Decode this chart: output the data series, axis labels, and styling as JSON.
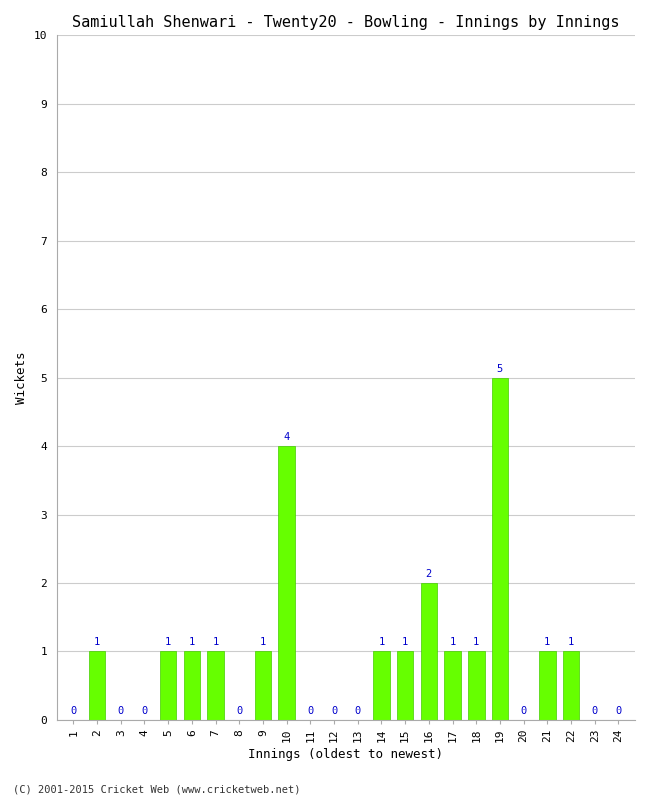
{
  "title": "Samiullah Shenwari - Twenty20 - Bowling - Innings by Innings",
  "xlabel": "Innings (oldest to newest)",
  "ylabel": "Wickets",
  "x_labels": [
    "1",
    "2",
    "3",
    "4",
    "5",
    "6",
    "7",
    "8",
    "9",
    "10",
    "11",
    "12",
    "13",
    "14",
    "15",
    "16",
    "17",
    "18",
    "19",
    "20",
    "21",
    "22",
    "23",
    "24"
  ],
  "wickets": [
    0,
    1,
    0,
    0,
    1,
    1,
    1,
    0,
    1,
    4,
    0,
    0,
    0,
    1,
    1,
    2,
    1,
    1,
    5,
    0,
    1,
    1,
    0,
    0
  ],
  "bar_color": "#66ff00",
  "bar_edge_color": "#44cc00",
  "label_color": "#0000cc",
  "ylim": [
    0,
    10
  ],
  "yticks": [
    0,
    1,
    2,
    3,
    4,
    5,
    6,
    7,
    8,
    9,
    10
  ],
  "background_color": "#ffffff",
  "grid_color": "#cccccc",
  "footer": "(C) 2001-2015 Cricket Web (www.cricketweb.net)",
  "title_fontsize": 11,
  "axis_label_fontsize": 9,
  "tick_fontsize": 8,
  "annotation_fontsize": 7.5
}
